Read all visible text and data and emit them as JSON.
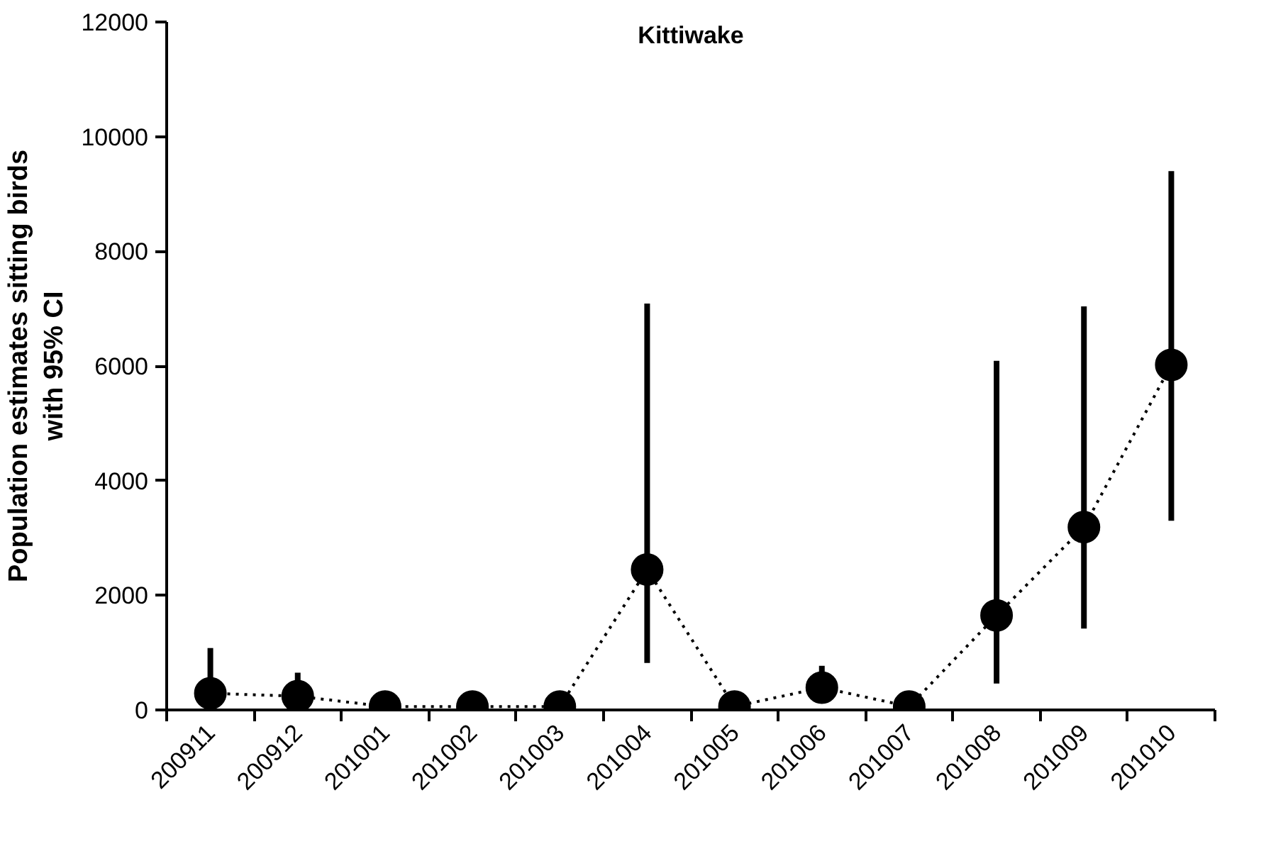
{
  "chart_data": {
    "type": "line",
    "title": "Kittiwake",
    "ylabel": "Population estimates sitting birds\nwith 95% CI",
    "categories": [
      "200911",
      "200912",
      "201001",
      "201002",
      "201003",
      "201004",
      "201005",
      "201006",
      "201007",
      "201008",
      "201009",
      "201010"
    ],
    "series": [
      {
        "color": "#000000",
        "values": [
          290,
          240,
          60,
          60,
          60,
          2450,
          60,
          390,
          60,
          1650,
          3190,
          6020
        ],
        "errors": [
          [
            290,
            1080
          ],
          [
            240,
            650
          ],
          null,
          null,
          null,
          [
            820,
            7090
          ],
          null,
          [
            390,
            770
          ],
          null,
          [
            460,
            6090
          ],
          [
            1420,
            7040
          ],
          [
            3300,
            9400
          ]
        ]
      }
    ],
    "ylim": [
      0,
      12000
    ],
    "yticks": [
      0,
      2000,
      4000,
      6000,
      8000,
      10000,
      12000
    ],
    "marker": "circle",
    "line_style": "dotted",
    "grid": false
  }
}
